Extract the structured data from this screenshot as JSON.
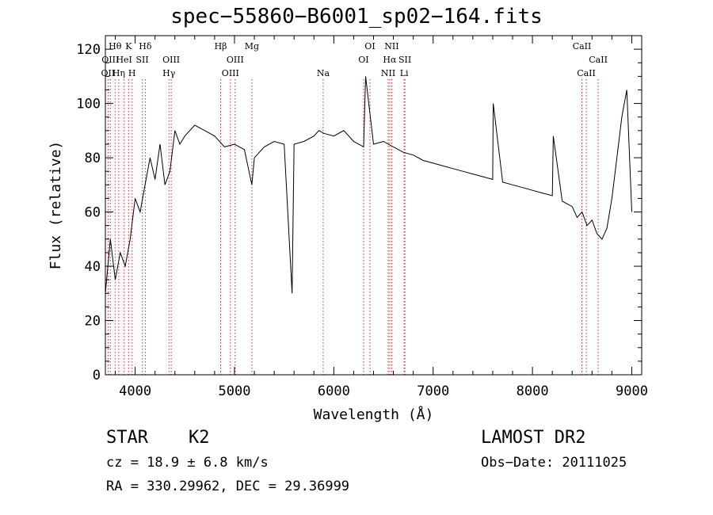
{
  "title": "spec−55860−B6001_sp02−164.fits",
  "chart_data": {
    "type": "line",
    "xlabel": "Wavelength (Å)",
    "ylabel": "Flux (relative)",
    "xlim": [
      3700,
      9100
    ],
    "ylim": [
      0,
      125
    ],
    "xticks": [
      4000,
      5000,
      6000,
      7000,
      8000,
      9000
    ],
    "yticks": [
      0,
      20,
      40,
      60,
      80,
      100,
      120
    ],
    "grid": false,
    "color": "#000000",
    "line_marker_color": "#d62728",
    "series": [
      {
        "x": [
          3700,
          3750,
          3800,
          3850,
          3900,
          3950,
          4000,
          4050,
          4100,
          4150,
          4200,
          4250,
          4300,
          4350,
          4400,
          4450,
          4500,
          4600,
          4700,
          4800,
          4900,
          5000,
          5100,
          5175,
          5200,
          5300,
          5400,
          5500,
          5580,
          5600,
          5700,
          5800,
          5850,
          5900,
          6000,
          6100,
          6200,
          6300,
          6320,
          6400,
          6500,
          6550,
          6600,
          6700,
          6800,
          6900,
          7000,
          7100,
          7200,
          7300,
          7400,
          7500,
          7600,
          7605,
          7700,
          7800,
          7900,
          8000,
          8100,
          8200,
          8210,
          8300,
          8400,
          8450,
          8500,
          8550,
          8600,
          8650,
          8700,
          8750,
          8800,
          8850,
          8900,
          8950,
          9000
        ],
        "values": [
          30,
          50,
          35,
          45,
          40,
          50,
          65,
          60,
          70,
          80,
          72,
          85,
          70,
          75,
          90,
          85,
          88,
          92,
          90,
          88,
          84,
          85,
          83,
          70,
          80,
          84,
          86,
          85,
          30,
          85,
          86,
          88,
          90,
          89,
          88,
          90,
          86,
          84,
          110,
          85,
          86,
          85,
          84,
          82,
          81,
          79,
          78,
          77,
          76,
          75,
          74,
          73,
          72,
          100,
          71,
          70,
          69,
          68,
          67,
          66,
          88,
          64,
          62,
          58,
          60,
          55,
          57,
          52,
          50,
          54,
          65,
          80,
          95,
          105,
          60
        ]
      }
    ],
    "line_markers": [
      {
        "x": 3727,
        "label": "OII",
        "row": 2
      },
      {
        "x": 3750,
        "label": "OIII",
        "row": 1
      },
      {
        "x": 3798,
        "label": "Hθ",
        "row": 0
      },
      {
        "x": 3835,
        "label": "Hη",
        "row": 2
      },
      {
        "x": 3889,
        "label": "HeI",
        "row": 1
      },
      {
        "x": 3934,
        "label": "K",
        "row": 0
      },
      {
        "x": 3969,
        "label": "H",
        "row": 2
      },
      {
        "x": 4072,
        "label": "SII",
        "row": 1
      },
      {
        "x": 4102,
        "label": "Hδ",
        "row": 0
      },
      {
        "x": 4340,
        "label": "Hγ",
        "row": 2
      },
      {
        "x": 4363,
        "label": "OIII",
        "row": 1
      },
      {
        "x": 4861,
        "label": "Hβ",
        "row": 0
      },
      {
        "x": 4959,
        "label": "OIII",
        "row": 2
      },
      {
        "x": 5007,
        "label": "OIII",
        "row": 1
      },
      {
        "x": 5175,
        "label": "Mg",
        "row": 0
      },
      {
        "x": 5893,
        "label": "Na",
        "row": 2
      },
      {
        "x": 6300,
        "label": "OI",
        "row": 1
      },
      {
        "x": 6364,
        "label": "OI",
        "row": 0
      },
      {
        "x": 6548,
        "label": "NII",
        "row": 2
      },
      {
        "x": 6563,
        "label": "Hα",
        "row": 1
      },
      {
        "x": 6583,
        "label": "NII",
        "row": 0
      },
      {
        "x": 6708,
        "label": "Li",
        "row": 2
      },
      {
        "x": 6716,
        "label": "SII",
        "row": 1
      },
      {
        "x": 8498,
        "label": "CaII",
        "row": 0
      },
      {
        "x": 8542,
        "label": "CaII",
        "row": 2
      },
      {
        "x": 8662,
        "label": "CaII",
        "row": 1
      }
    ]
  },
  "info": {
    "class": "STAR",
    "subclass": "K2",
    "survey": "LAMOST DR2",
    "cz": "cz = 18.9 ± 6.8 km/s",
    "obsdate": "Obs−Date: 20111025",
    "radec": "RA = 330.29962, DEC =  29.36999"
  }
}
